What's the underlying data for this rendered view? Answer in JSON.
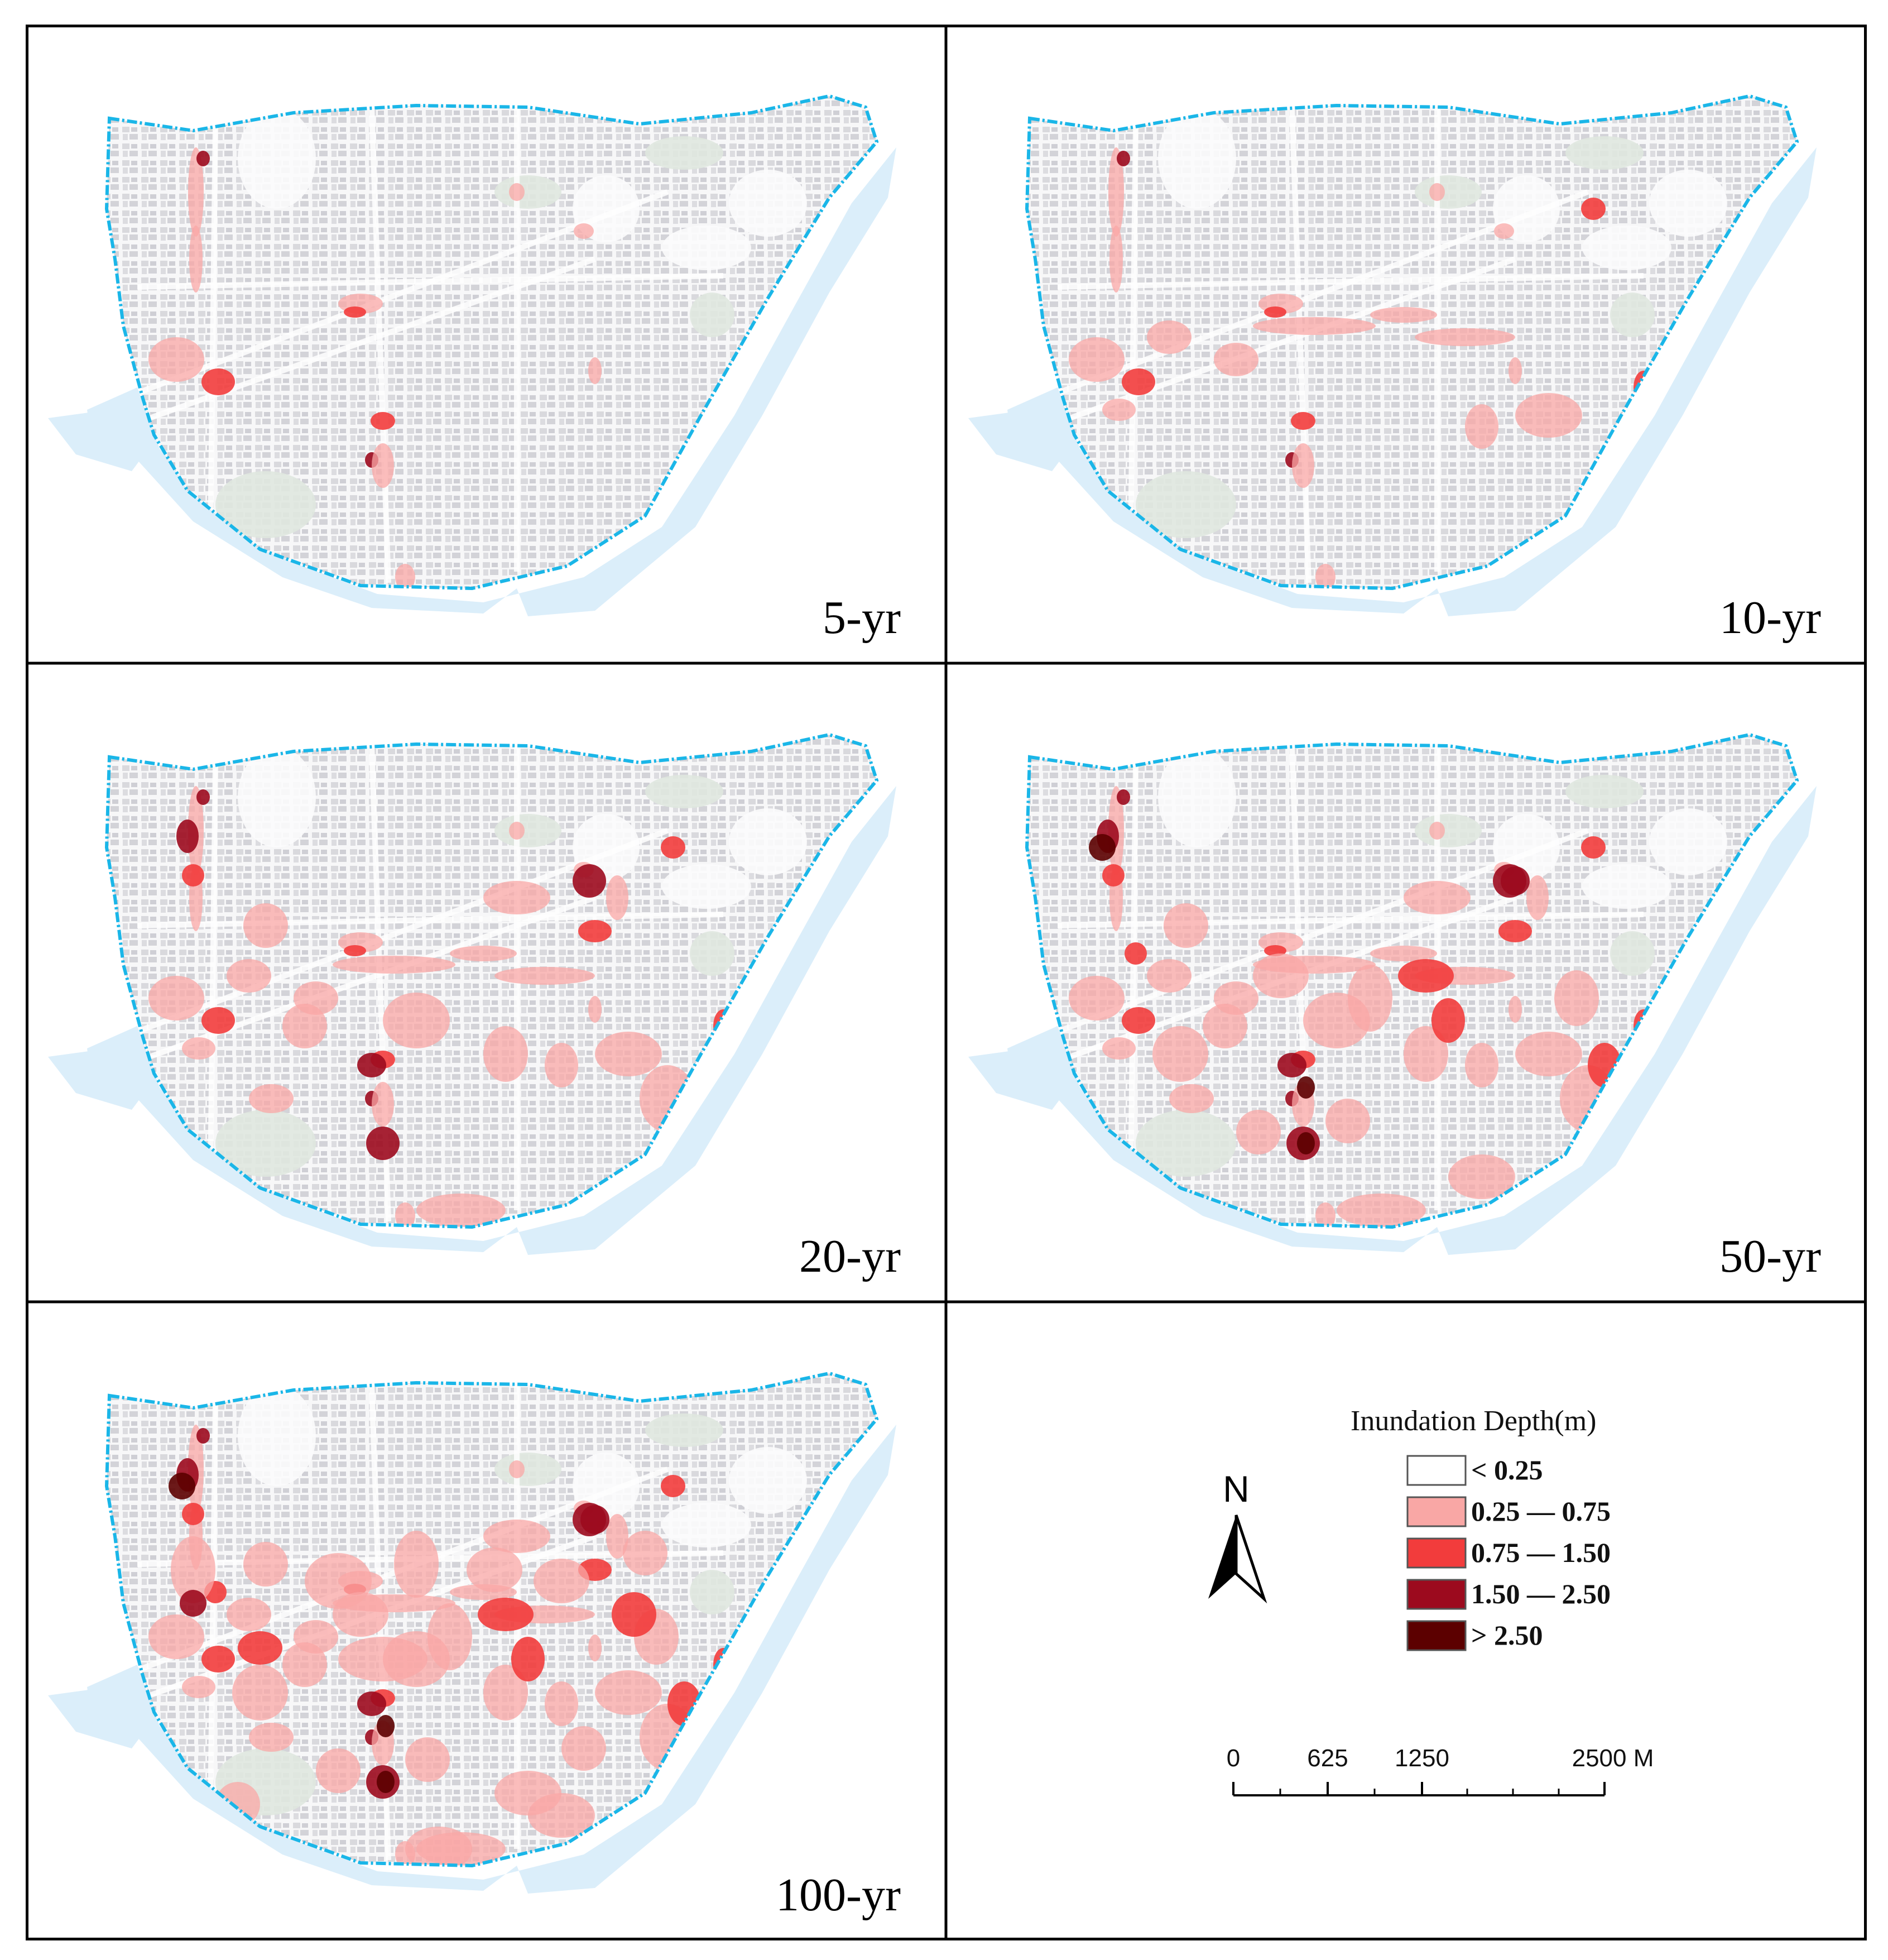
{
  "panels": [
    {
      "label": "5-yr",
      "level": 1
    },
    {
      "label": "10-yr",
      "level": 2
    },
    {
      "label": "20-yr",
      "level": 3
    },
    {
      "label": "50-yr",
      "level": 4
    },
    {
      "label": "100-yr",
      "level": 5
    }
  ],
  "legend": {
    "title": "Inundation Depth(m)",
    "items": [
      {
        "label": "< 0.25",
        "color": "#ffffff"
      },
      {
        "label": "0.25 — 0.75",
        "color": "#f9a7a5"
      },
      {
        "label": "0.75 — 1.50",
        "color": "#f23c3c"
      },
      {
        "label": "1.50 — 2.50",
        "color": "#9c0a1e"
      },
      {
        "label": "> 2.50",
        "color": "#5c0000"
      }
    ]
  },
  "north_arrow": {
    "label": "N"
  },
  "scale_bar": {
    "ticks": [
      "0",
      "625",
      "1250",
      "2500 M"
    ]
  },
  "colors": {
    "boundary": "#1ab6e8",
    "water": "#dbeefa",
    "urban": "#e6e6e9",
    "green": "#dfe7df"
  }
}
